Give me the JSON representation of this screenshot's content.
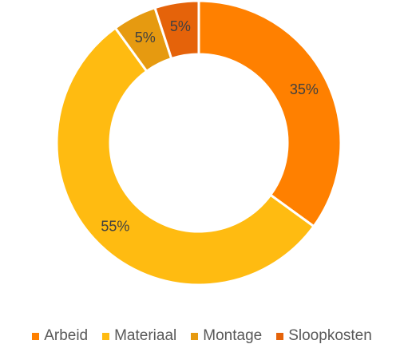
{
  "chart_data": {
    "type": "pie",
    "variant": "donut",
    "slices": [
      {
        "label": "Arbeid",
        "value": 35,
        "display": "35%",
        "color": "#FF8000"
      },
      {
        "label": "Materiaal",
        "value": 55,
        "display": "55%",
        "color": "#FFBB11"
      },
      {
        "label": "Montage",
        "value": 5,
        "display": "5%",
        "color": "#E69A10"
      },
      {
        "label": "Sloopkosten",
        "value": 5,
        "display": "5%",
        "color": "#E5630A"
      }
    ],
    "legend_position": "bottom"
  }
}
